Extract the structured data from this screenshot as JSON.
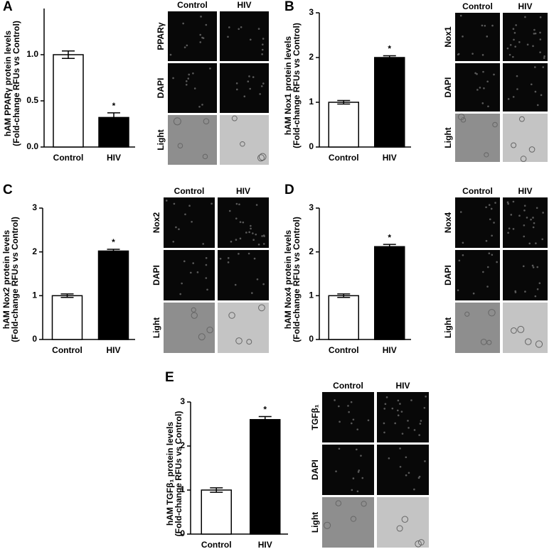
{
  "chart_data": [
    {
      "type": "bar",
      "panel": "A",
      "ylabel": [
        "hAM PPARγ protein levels",
        "(Fold-change RFUs vs Control)"
      ],
      "categories": [
        "Control",
        "HIV"
      ],
      "values": [
        1.0,
        0.32
      ],
      "errors": [
        0.04,
        0.05
      ],
      "colors": [
        "#ffffff",
        "#000000"
      ],
      "ylim": [
        0,
        1.5
      ],
      "yticks": [
        {
          "value": 0,
          "label": "0.0"
        },
        {
          "value": 0.5,
          "label": "0.5"
        },
        {
          "value": 1,
          "label": "1.0"
        }
      ],
      "annotation": "*",
      "image_columns": [
        "Control",
        "HIV"
      ],
      "image_rows": [
        "PPARγ",
        "DAPI",
        "Light"
      ]
    },
    {
      "type": "bar",
      "panel": "B",
      "ylabel": [
        "hAM Nox1 protein levels",
        "(Fold-change RFUs vs Control)"
      ],
      "categories": [
        "Control",
        "HIV"
      ],
      "values": [
        1.0,
        2.0
      ],
      "errors": [
        0.04,
        0.04
      ],
      "colors": [
        "#ffffff",
        "#000000"
      ],
      "ylim": [
        0,
        3
      ],
      "yticks": [
        0,
        1,
        2,
        3
      ],
      "annotation": "*",
      "image_columns": [
        "Control",
        "HIV"
      ],
      "image_rows": [
        "Nox1",
        "DAPI",
        "Light"
      ]
    },
    {
      "type": "bar",
      "panel": "C",
      "ylabel": [
        "hAM Nox2 protein levels",
        "(Fold-change RFUs vs Control)"
      ],
      "categories": [
        "Control",
        "HIV"
      ],
      "values": [
        1.0,
        2.02
      ],
      "errors": [
        0.04,
        0.04
      ],
      "colors": [
        "#ffffff",
        "#000000"
      ],
      "ylim": [
        0,
        3
      ],
      "yticks": [
        0,
        1,
        2,
        3
      ],
      "annotation": "*",
      "image_columns": [
        "Control",
        "HIV"
      ],
      "image_rows": [
        "Nox2",
        "DAPI",
        "Light"
      ]
    },
    {
      "type": "bar",
      "panel": "D",
      "ylabel": [
        "hAM Nox4 protein levels",
        "(Fold-change RFUs vs Control)"
      ],
      "categories": [
        "Control",
        "HIV"
      ],
      "values": [
        1.0,
        2.12
      ],
      "errors": [
        0.04,
        0.05
      ],
      "colors": [
        "#ffffff",
        "#000000"
      ],
      "ylim": [
        0,
        3
      ],
      "yticks": [
        0,
        1,
        2,
        3
      ],
      "annotation": "*",
      "image_columns": [
        "Control",
        "HIV"
      ],
      "image_rows": [
        "Nox4",
        "DAPI",
        "Light"
      ]
    },
    {
      "type": "bar",
      "panel": "E",
      "ylabel": [
        "hAM TGFβ₁ protein levels",
        "(Fold-change RFUs vs Control)"
      ],
      "categories": [
        "Control",
        "HIV"
      ],
      "values": [
        1.0,
        2.6
      ],
      "errors": [
        0.05,
        0.07
      ],
      "colors": [
        "#ffffff",
        "#000000"
      ],
      "ylim": [
        0,
        3
      ],
      "yticks": [
        0,
        1,
        2,
        3
      ],
      "annotation": "*",
      "image_columns": [
        "Control",
        "HIV"
      ],
      "image_rows": [
        "TGFβ₁",
        "DAPI",
        "Light"
      ]
    }
  ]
}
